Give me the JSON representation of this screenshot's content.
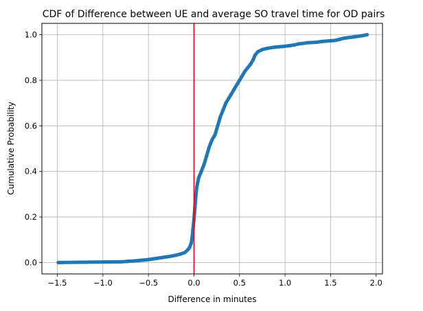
{
  "chart_data": {
    "type": "scatter",
    "title": "CDF of Difference between UE and average SO travel time for OD pairs",
    "xlabel": "Difference in minutes",
    "ylabel": "Cumulative Probability",
    "xlim": [
      -1.67,
      2.07
    ],
    "ylim": [
      -0.05,
      1.05
    ],
    "xticks": [
      -1.5,
      -1.0,
      -0.5,
      0.0,
      0.5,
      1.0,
      1.5,
      2.0
    ],
    "xtick_labels": [
      "−1.5",
      "−1.0",
      "−0.5",
      "0.0",
      "0.5",
      "1.0",
      "1.5",
      "2.0"
    ],
    "yticks": [
      0.0,
      0.2,
      0.4,
      0.6,
      0.8,
      1.0
    ],
    "ytick_labels": [
      "0.0",
      "0.2",
      "0.4",
      "0.6",
      "0.8",
      "1.0"
    ],
    "grid": true,
    "vline": {
      "x": 0.0,
      "color": "#e8000b"
    },
    "marker_color": "#1f77b4",
    "series": [
      {
        "x": [
          -1.49,
          -1.47,
          -0.83,
          -0.8,
          -0.73,
          -0.66,
          -0.6,
          -0.55,
          -0.5,
          -0.45,
          -0.4,
          -0.35,
          -0.3,
          -0.25,
          -0.2,
          -0.15,
          -0.1,
          -0.07,
          -0.05,
          -0.03,
          -0.02,
          -0.01,
          0.0,
          0.01,
          0.02,
          0.03,
          0.05,
          0.08,
          0.11,
          0.14,
          0.17,
          0.2,
          0.23,
          0.26,
          0.29,
          0.32,
          0.35,
          0.38,
          0.41,
          0.44,
          0.47,
          0.5,
          0.53,
          0.56,
          0.59,
          0.62,
          0.65,
          0.67,
          0.7,
          0.75,
          0.8,
          0.88,
          0.97,
          1.05,
          1.1,
          1.15,
          1.2,
          1.25,
          1.35,
          1.4,
          1.55,
          1.6,
          1.65,
          1.7,
          1.75,
          1.8,
          1.85,
          1.9
        ],
        "y": [
          0.0,
          0.0,
          0.003,
          0.003,
          0.005,
          0.007,
          0.009,
          0.011,
          0.013,
          0.016,
          0.019,
          0.022,
          0.025,
          0.028,
          0.032,
          0.037,
          0.044,
          0.055,
          0.065,
          0.085,
          0.11,
          0.15,
          0.19,
          0.24,
          0.29,
          0.33,
          0.37,
          0.4,
          0.43,
          0.47,
          0.51,
          0.54,
          0.56,
          0.6,
          0.64,
          0.67,
          0.7,
          0.72,
          0.74,
          0.76,
          0.78,
          0.8,
          0.82,
          0.84,
          0.855,
          0.87,
          0.89,
          0.91,
          0.925,
          0.935,
          0.94,
          0.945,
          0.948,
          0.952,
          0.955,
          0.96,
          0.962,
          0.965,
          0.967,
          0.97,
          0.975,
          0.98,
          0.985,
          0.988,
          0.99,
          0.993,
          0.996,
          1.0
        ]
      }
    ]
  }
}
